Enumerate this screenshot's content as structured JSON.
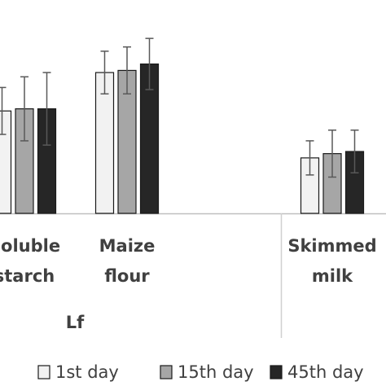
{
  "chart_data": {
    "type": "bar",
    "categories": [
      "Soluble starch",
      "Maize flour",
      null,
      "Skimmed milk"
    ],
    "group_label": "Lf",
    "series": [
      {
        "name": "1st day",
        "color": "#f2f2f2",
        "values": [
          48,
          66,
          null,
          26
        ],
        "errors": [
          11,
          10,
          null,
          8
        ]
      },
      {
        "name": "15th day",
        "color": "#a6a6a6",
        "values": [
          49,
          67,
          null,
          28
        ],
        "errors": [
          15,
          11,
          null,
          11
        ]
      },
      {
        "name": "45th day",
        "color": "#262626",
        "values": [
          49,
          70,
          null,
          29
        ],
        "errors": [
          17,
          12,
          null,
          10
        ]
      }
    ],
    "ylim": [
      0,
      100
    ]
  }
}
